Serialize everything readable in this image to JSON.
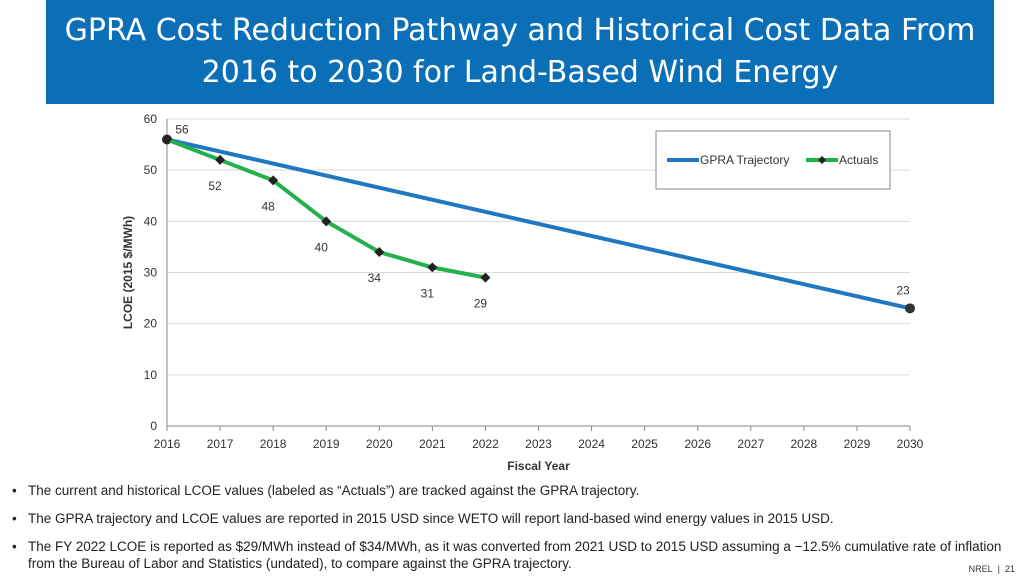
{
  "title": "GPRA Cost Reduction Pathway and Historical Cost Data From 2016 to 2030 for Land-Based Wind Energy",
  "chart_data": {
    "type": "line",
    "xlabel": "Fiscal Year",
    "ylabel": "LCOE (2015 $/MWh)",
    "xlim": [
      2016,
      2030
    ],
    "ylim": [
      0,
      60
    ],
    "x_ticks": [
      "2016",
      "2017",
      "2018",
      "2019",
      "2020",
      "2021",
      "2022",
      "2023",
      "2024",
      "2025",
      "2026",
      "2027",
      "2028",
      "2029",
      "2030"
    ],
    "y_ticks": [
      "0",
      "10",
      "20",
      "30",
      "40",
      "50",
      "60"
    ],
    "grid": "horizontal",
    "legend_placement": "top-right",
    "series": [
      {
        "name": "GPRA Trajectory",
        "color": "#1f78c1",
        "x": [
          2016,
          2030
        ],
        "y": [
          56,
          23
        ],
        "labels": [
          "",
          "23"
        ]
      },
      {
        "name": "Actuals",
        "color": "#22b14c",
        "marker": "diamond",
        "x": [
          2016,
          2017,
          2018,
          2019,
          2020,
          2021,
          2022
        ],
        "y": [
          56,
          52,
          48,
          40,
          34,
          31,
          29
        ],
        "labels": [
          "56",
          "52",
          "48",
          "40",
          "34",
          "31",
          "29"
        ]
      }
    ]
  },
  "bullets": [
    "The current and historical LCOE values (labeled as “Actuals”) are tracked against the GPRA trajectory.",
    "The GPRA trajectory and LCOE values are reported in 2015 USD since WETO will report land-based wind energy values in 2015 USD.",
    "The FY 2022 LCOE is reported as $29/MWh instead of $34/MWh, as it was converted from 2021 USD to 2015 USD assuming a −12.5% cumulative rate of inflation from the Bureau of Labor and Statistics (undated), to compare against the GPRA trajectory."
  ],
  "footer": {
    "org": "NREL",
    "page": "21"
  }
}
